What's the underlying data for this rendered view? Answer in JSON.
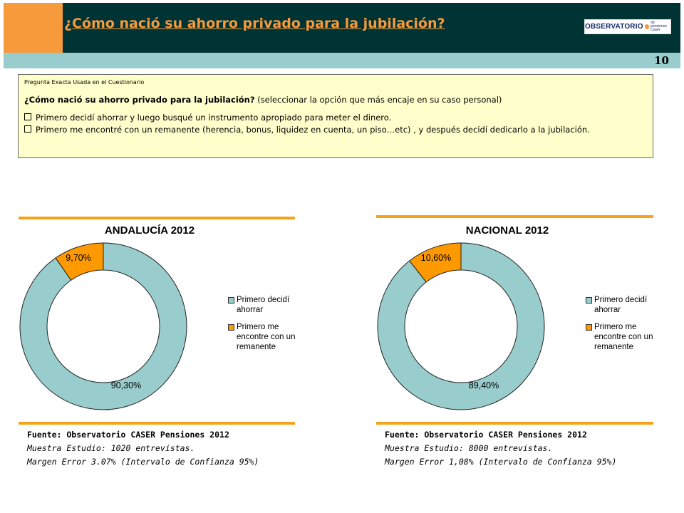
{
  "header": {
    "title": "¿Cómo nació su ahorro privado para la jubilación?",
    "logo_text": "OBSERVATORIO",
    "logo_sub_1": "de pensiones",
    "logo_sub_2": "Caser",
    "page_number": "10",
    "colors": {
      "accent": "#F79A3C",
      "dark": "#003333",
      "strip": "#99CCCC"
    }
  },
  "question": {
    "caption": "Pregunta Exacta Usada en el Cuestionario",
    "text_bold": "¿Cómo nació su ahorro privado para la jubilación?",
    "text_rest": "(seleccionar la opción que más encaje en su caso personal)",
    "options": [
      "Primero decidí ahorrar y luego busqué un instrumento apropiado para meter el dinero.",
      "Primero me encontré con un remanente (herencia, bonus, liquidez en cuenta, un piso…etc) , y después decidí dedicarlo a la jubilación."
    ]
  },
  "chart_data": [
    {
      "type": "pie",
      "title": "ANDALUCÍA 2012",
      "categories": [
        "Primero decidí ahorrar",
        "Primero me encontre con un remanente"
      ],
      "values": [
        90.3,
        9.7
      ],
      "data_labels": [
        "90,30%",
        "9,70%"
      ],
      "colors": [
        "#99CCCC",
        "#FF9900"
      ],
      "legend_placement": "right"
    },
    {
      "type": "pie",
      "title": "NACIONAL 2012",
      "categories": [
        "Primero decidí ahorrar",
        "Primero me encontre con un remanente"
      ],
      "values": [
        89.4,
        10.6
      ],
      "data_labels": [
        "89,40%",
        "10,60%"
      ],
      "colors": [
        "#99CCCC",
        "#FF9900"
      ],
      "legend_placement": "right"
    }
  ],
  "legend": {
    "item1": "Primero decidí ahorrar",
    "item2": "Primero me encontre con un remanente"
  },
  "sources": [
    {
      "title": "Fuente: Observatorio CASER Pensiones 2012",
      "sample": "Muestra Estudio: 1020 entrevistas.",
      "margin": "Margen Error 3.07% (Intervalo de Confianza 95%)"
    },
    {
      "title": "Fuente: Observatorio CASER Pensiones 2012",
      "sample": "Muestra Estudio: 8000 entrevistas.",
      "margin": "Margen Error 1,08% (Intervalo de Confianza 95%)"
    }
  ]
}
